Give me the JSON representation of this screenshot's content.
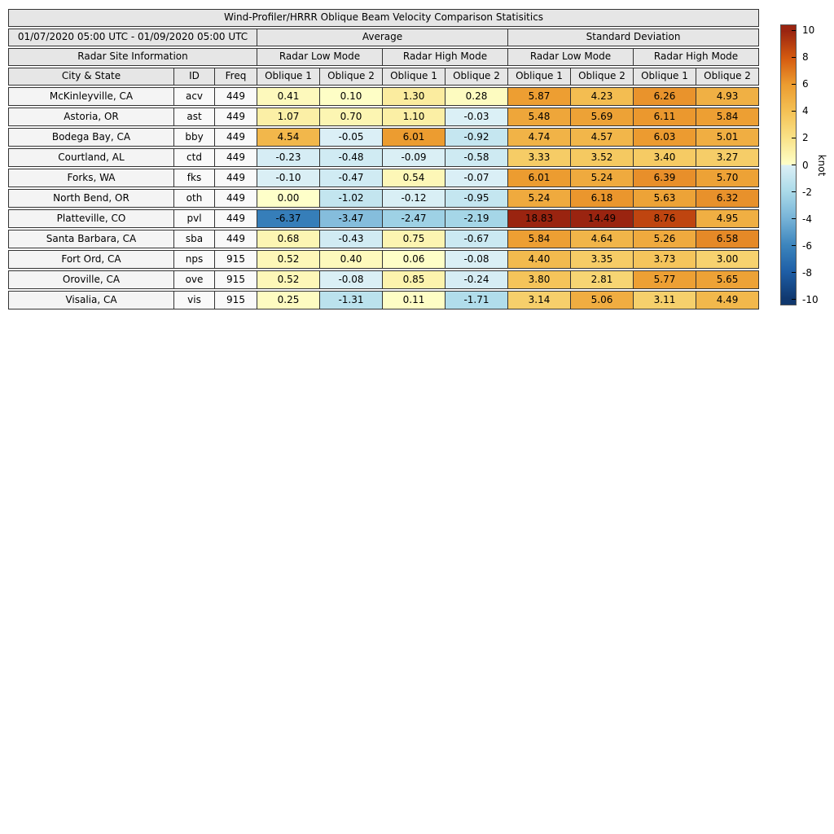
{
  "figure": {
    "title": "Wind-Profiler/HRRR Oblique Beam Velocity Comparison Statisitics",
    "date_range": "01/07/2020 05:00 UTC - 01/09/2020 05:00 UTC",
    "section_headers": {
      "average": "Average",
      "std": "Standard Deviation",
      "site_info": "Radar Site Information"
    },
    "mode_headers": [
      "Radar Low Mode",
      "Radar High Mode",
      "Radar Low Mode",
      "Radar High Mode"
    ],
    "column_headers": [
      "City & State",
      "ID",
      "Freq",
      "Oblique 1",
      "Oblique 2",
      "Oblique 1",
      "Oblique 2",
      "Oblique 1",
      "Oblique 2",
      "Oblique 1",
      "Oblique 2"
    ]
  },
  "chart_data": {
    "type": "heatmap",
    "title": "Wind-Profiler/HRRR Oblique Beam Velocity Comparison Statisitics",
    "period": "01/07/2020 05:00 UTC - 01/09/2020 05:00 UTC",
    "columns": [
      "Average / Radar Low Mode / Oblique 1",
      "Average / Radar Low Mode / Oblique 2",
      "Average / Radar High Mode / Oblique 1",
      "Average / Radar High Mode / Oblique 2",
      "Standard Deviation / Radar Low Mode / Oblique 1",
      "Standard Deviation / Radar Low Mode / Oblique 2",
      "Standard Deviation / Radar High Mode / Oblique 1",
      "Standard Deviation / Radar High Mode / Oblique 2"
    ],
    "rows": [
      {
        "city": "McKinleyville, CA",
        "id": "acv",
        "freq": "449",
        "values": [
          0.41,
          0.1,
          1.3,
          0.28,
          5.87,
          4.23,
          6.26,
          4.93
        ]
      },
      {
        "city": "Astoria, OR",
        "id": "ast",
        "freq": "449",
        "values": [
          1.07,
          0.7,
          1.1,
          -0.03,
          5.48,
          5.69,
          6.11,
          5.84
        ]
      },
      {
        "city": "Bodega Bay, CA",
        "id": "bby",
        "freq": "449",
        "values": [
          4.54,
          -0.05,
          6.01,
          -0.92,
          4.74,
          4.57,
          6.03,
          5.01
        ]
      },
      {
        "city": "Courtland, AL",
        "id": "ctd",
        "freq": "449",
        "values": [
          -0.23,
          -0.48,
          -0.09,
          -0.58,
          3.33,
          3.52,
          3.4,
          3.27
        ]
      },
      {
        "city": "Forks, WA",
        "id": "fks",
        "freq": "449",
        "values": [
          -0.1,
          -0.47,
          0.54,
          -0.07,
          6.01,
          5.24,
          6.39,
          5.7
        ]
      },
      {
        "city": "North Bend, OR",
        "id": "oth",
        "freq": "449",
        "values": [
          0.0,
          -1.02,
          -0.12,
          -0.95,
          5.24,
          6.18,
          5.63,
          6.32
        ]
      },
      {
        "city": "Platteville, CO",
        "id": "pvl",
        "freq": "449",
        "values": [
          -6.37,
          -3.47,
          -2.47,
          -2.19,
          18.83,
          14.49,
          8.76,
          4.95
        ]
      },
      {
        "city": "Santa Barbara, CA",
        "id": "sba",
        "freq": "449",
        "values": [
          0.68,
          -0.43,
          0.75,
          -0.67,
          5.84,
          4.64,
          5.26,
          6.58
        ]
      },
      {
        "city": "Fort Ord, CA",
        "id": "nps",
        "freq": "915",
        "values": [
          0.52,
          0.4,
          0.06,
          -0.08,
          4.4,
          3.35,
          3.73,
          3.0
        ]
      },
      {
        "city": "Oroville, CA",
        "id": "ove",
        "freq": "915",
        "values": [
          0.52,
          -0.08,
          0.85,
          -0.24,
          3.8,
          2.81,
          5.77,
          5.65
        ]
      },
      {
        "city": "Visalia, CA",
        "id": "vis",
        "freq": "915",
        "values": [
          0.25,
          -1.31,
          0.11,
          -1.71,
          3.14,
          5.06,
          3.11,
          4.49
        ]
      }
    ],
    "colorbar": {
      "label": "knot",
      "ticks": [
        10,
        8,
        6,
        4,
        2,
        0,
        -2,
        -4,
        -6,
        -8,
        -10
      ],
      "range": [
        -10,
        10
      ],
      "cmap_positive": [
        [
          0,
          "#feffc9"
        ],
        [
          2,
          "#f9e288"
        ],
        [
          4,
          "#f4c155"
        ],
        [
          6,
          "#ec9c30"
        ],
        [
          8,
          "#d55a10"
        ],
        [
          10,
          "#9a2410"
        ]
      ],
      "cmap_negative": [
        [
          0,
          "#dcf0f6"
        ],
        [
          -2,
          "#aadae9"
        ],
        [
          -4,
          "#77b3d7"
        ],
        [
          -6,
          "#3c85bd"
        ],
        [
          -8,
          "#1e5ea6"
        ],
        [
          -10,
          "#10386f"
        ]
      ]
    }
  },
  "colors": {
    "header_bg": "#e6e6e6",
    "city_bg": "#f4f4f4",
    "id_freq_bg": "#f9f9f9",
    "border": "#333333"
  }
}
